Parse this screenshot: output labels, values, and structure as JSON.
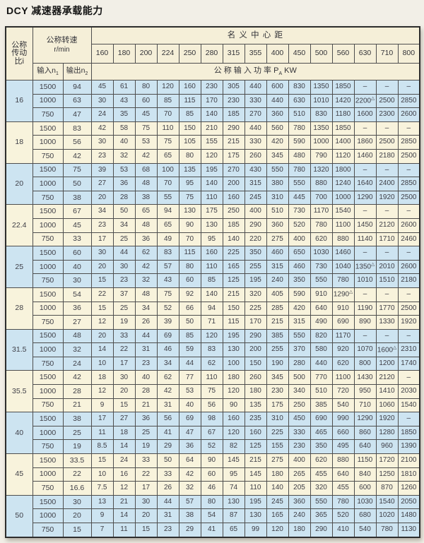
{
  "page": {
    "title": "DCY 减速器承载能力"
  },
  "colors": {
    "band_blue": "#cde4f1",
    "band_cream": "#f8f3dc",
    "header_bg": "#f5efd8",
    "grid_line": "#4e4e4e",
    "page_bg": "#f2efe7"
  },
  "marks": {
    "triangle": "△",
    "empty": "–"
  },
  "table": {
    "header": {
      "ratio_lines": [
        "公称",
        "传动",
        "比i"
      ],
      "speed_label": "公称转速",
      "speed_unit": "r/min",
      "center_distance_label": "名 义 中 心 距",
      "center_distances": [
        "160",
        "180",
        "200",
        "224",
        "250",
        "280",
        "315",
        "355",
        "400",
        "450",
        "500",
        "560",
        "630",
        "710",
        "800"
      ],
      "input_prefix": "输入n",
      "input_sub": "1",
      "output_prefix": "输出n",
      "output_sub": "2",
      "power_prefix": "公 称 输 入 功 率 P",
      "power_sub": "A",
      "power_suffix": " KW"
    },
    "groups": [
      {
        "ratio": "16",
        "band": "blue",
        "rows": [
          {
            "input": "1500",
            "output": "94",
            "values": [
              "45",
              "61",
              "80",
              "120",
              "160",
              "230",
              "305",
              "440",
              "600",
              "830",
              "1350",
              "1850",
              "–",
              "–",
              "–"
            ]
          },
          {
            "input": "1000",
            "output": "63",
            "values": [
              "30",
              "43",
              "60",
              "85",
              "115",
              "170",
              "230",
              "330",
              "440",
              "630",
              "1010",
              "1420",
              "2200△",
              "2500",
              "2850"
            ]
          },
          {
            "input": "750",
            "output": "47",
            "values": [
              "24",
              "35",
              "45",
              "70",
              "85",
              "140",
              "185",
              "270",
              "360",
              "510",
              "830",
              "1180",
              "1600",
              "2300",
              "2600"
            ]
          }
        ]
      },
      {
        "ratio": "18",
        "band": "cream",
        "rows": [
          {
            "input": "1500",
            "output": "83",
            "values": [
              "42",
              "58",
              "75",
              "110",
              "150",
              "210",
              "290",
              "440",
              "560",
              "780",
              "1350",
              "1850",
              "–",
              "–",
              "–"
            ]
          },
          {
            "input": "1000",
            "output": "56",
            "values": [
              "30",
              "40",
              "53",
              "75",
              "105",
              "155",
              "215",
              "330",
              "420",
              "590",
              "1000",
              "1400",
              "1860",
              "2500",
              "2850"
            ]
          },
          {
            "input": "750",
            "output": "42",
            "values": [
              "23",
              "32",
              "42",
              "65",
              "80",
              "120",
              "175",
              "260",
              "345",
              "480",
              "790",
              "1120",
              "1460",
              "2180",
              "2500"
            ]
          }
        ]
      },
      {
        "ratio": "20",
        "band": "blue",
        "rows": [
          {
            "input": "1500",
            "output": "75",
            "values": [
              "39",
              "53",
              "68",
              "100",
              "135",
              "195",
              "270",
              "430",
              "550",
              "780",
              "1320",
              "1800",
              "–",
              "–",
              "–"
            ]
          },
          {
            "input": "1000",
            "output": "50",
            "values": [
              "27",
              "36",
              "48",
              "70",
              "95",
              "140",
              "200",
              "315",
              "380",
              "550",
              "880",
              "1240",
              "1640",
              "2400",
              "2850"
            ]
          },
          {
            "input": "750",
            "output": "38",
            "values": [
              "20",
              "28",
              "38",
              "55",
              "75",
              "110",
              "160",
              "245",
              "310",
              "445",
              "700",
              "1000",
              "1290",
              "1920",
              "2500"
            ]
          }
        ]
      },
      {
        "ratio": "22.4",
        "band": "cream",
        "rows": [
          {
            "input": "1500",
            "output": "67",
            "values": [
              "34",
              "50",
              "65",
              "94",
              "130",
              "175",
              "250",
              "400",
              "510",
              "730",
              "1170",
              "1540",
              "–",
              "–",
              "–"
            ]
          },
          {
            "input": "1000",
            "output": "45",
            "values": [
              "23",
              "34",
              "48",
              "65",
              "90",
              "130",
              "185",
              "290",
              "360",
              "520",
              "780",
              "1100",
              "1450",
              "2120",
              "2600"
            ]
          },
          {
            "input": "750",
            "output": "33",
            "values": [
              "17",
              "25",
              "36",
              "49",
              "70",
              "95",
              "140",
              "220",
              "275",
              "400",
              "620",
              "880",
              "1140",
              "1710",
              "2460"
            ]
          }
        ]
      },
      {
        "ratio": "25",
        "band": "blue",
        "rows": [
          {
            "input": "1500",
            "output": "60",
            "values": [
              "30",
              "44",
              "62",
              "83",
              "115",
              "160",
              "225",
              "350",
              "460",
              "650",
              "1030",
              "1460",
              "–",
              "–",
              "–"
            ]
          },
          {
            "input": "1000",
            "output": "40",
            "values": [
              "20",
              "30",
              "42",
              "57",
              "80",
              "110",
              "165",
              "255",
              "315",
              "460",
              "730",
              "1040",
              "1350△",
              "2010",
              "2600"
            ]
          },
          {
            "input": "750",
            "output": "30",
            "values": [
              "15",
              "23",
              "32",
              "43",
              "60",
              "85",
              "125",
              "195",
              "240",
              "350",
              "550",
              "780",
              "1010",
              "1510",
              "2180"
            ]
          }
        ]
      },
      {
        "ratio": "28",
        "band": "cream",
        "rows": [
          {
            "input": "1500",
            "output": "54",
            "values": [
              "22",
              "37",
              "48",
              "75",
              "92",
              "140",
              "215",
              "320",
              "405",
              "590",
              "910",
              "1290△",
              "–",
              "–",
              "–"
            ]
          },
          {
            "input": "1000",
            "output": "36",
            "values": [
              "15",
              "25",
              "34",
              "52",
              "66",
              "94",
              "150",
              "225",
              "285",
              "420",
              "640",
              "910",
              "1190",
              "1770",
              "2500"
            ]
          },
          {
            "input": "750",
            "output": "27",
            "values": [
              "12",
              "19",
              "26",
              "39",
              "50",
              "71",
              "115",
              "170",
              "215",
              "315",
              "490",
              "690",
              "890",
              "1330",
              "1920"
            ]
          }
        ]
      },
      {
        "ratio": "31.5",
        "band": "blue",
        "rows": [
          {
            "input": "1500",
            "output": "48",
            "values": [
              "20",
              "33",
              "44",
              "69",
              "85",
              "120",
              "195",
              "290",
              "385",
              "550",
              "820",
              "1170",
              "–",
              "–",
              "–"
            ]
          },
          {
            "input": "1000",
            "output": "32",
            "values": [
              "14",
              "22",
              "31",
              "46",
              "59",
              "83",
              "130",
              "200",
              "255",
              "370",
              "580",
              "920",
              "1070",
              "1600△",
              "2310"
            ]
          },
          {
            "input": "750",
            "output": "24",
            "values": [
              "10",
              "17",
              "23",
              "34",
              "44",
              "62",
              "100",
              "150",
              "190",
              "280",
              "440",
              "620",
              "800",
              "1200",
              "1740"
            ]
          }
        ]
      },
      {
        "ratio": "35.5",
        "band": "cream",
        "rows": [
          {
            "input": "1500",
            "output": "42",
            "values": [
              "18",
              "30",
              "40",
              "62",
              "77",
              "110",
              "180",
              "260",
              "345",
              "500",
              "770",
              "1100",
              "1430",
              "2120",
              "–"
            ]
          },
          {
            "input": "1000",
            "output": "28",
            "values": [
              "12",
              "20",
              "28",
              "42",
              "53",
              "75",
              "120",
              "180",
              "230",
              "340",
              "510",
              "720",
              "950",
              "1410",
              "2030"
            ]
          },
          {
            "input": "750",
            "output": "21",
            "values": [
              "9",
              "15",
              "21",
              "31",
              "40",
              "56",
              "90",
              "135",
              "175",
              "250",
              "385",
              "540",
              "710",
              "1060",
              "1540"
            ]
          }
        ]
      },
      {
        "ratio": "40",
        "band": "blue",
        "rows": [
          {
            "input": "1500",
            "output": "38",
            "values": [
              "17",
              "27",
              "36",
              "56",
              "69",
              "98",
              "160",
              "235",
              "310",
              "450",
              "690",
              "990",
              "1290",
              "1920",
              "–"
            ]
          },
          {
            "input": "1000",
            "output": "25",
            "values": [
              "11",
              "18",
              "25",
              "41",
              "47",
              "67",
              "120",
              "160",
              "225",
              "330",
              "465",
              "660",
              "860",
              "1280",
              "1850"
            ]
          },
          {
            "input": "750",
            "output": "19",
            "values": [
              "8.5",
              "14",
              "19",
              "29",
              "36",
              "52",
              "82",
              "125",
              "155",
              "230",
              "350",
              "495",
              "640",
              "960",
              "1390"
            ]
          }
        ]
      },
      {
        "ratio": "45",
        "band": "cream",
        "rows": [
          {
            "input": "1500",
            "output": "33.5",
            "values": [
              "15",
              "24",
              "33",
              "50",
              "64",
              "90",
              "145",
              "215",
              "275",
              "400",
              "620",
              "880",
              "1150",
              "1720",
              "2100"
            ]
          },
          {
            "input": "1000",
            "output": "22",
            "values": [
              "10",
              "16",
              "22",
              "33",
              "42",
              "60",
              "95",
              "145",
              "180",
              "265",
              "455",
              "640",
              "840",
              "1250",
              "1810"
            ]
          },
          {
            "input": "750",
            "output": "16.6",
            "values": [
              "7.5",
              "12",
              "17",
              "26",
              "32",
              "46",
              "74",
              "110",
              "140",
              "205",
              "320",
              "455",
              "600",
              "870",
              "1260"
            ]
          }
        ]
      },
      {
        "ratio": "50",
        "band": "blue",
        "rows": [
          {
            "input": "1500",
            "output": "30",
            "values": [
              "13",
              "21",
              "30",
              "44",
              "57",
              "80",
              "130",
              "195",
              "245",
              "360",
              "550",
              "780",
              "1030",
              "1540",
              "2050"
            ]
          },
          {
            "input": "1000",
            "output": "20",
            "values": [
              "9",
              "14",
              "20",
              "31",
              "38",
              "54",
              "87",
              "130",
              "165",
              "240",
              "365",
              "520",
              "680",
              "1020",
              "1480"
            ]
          },
          {
            "input": "750",
            "output": "15",
            "values": [
              "7",
              "11",
              "15",
              "23",
              "29",
              "41",
              "65",
              "99",
              "120",
              "180",
              "290",
              "410",
              "540",
              "780",
              "1130"
            ]
          }
        ]
      }
    ]
  }
}
